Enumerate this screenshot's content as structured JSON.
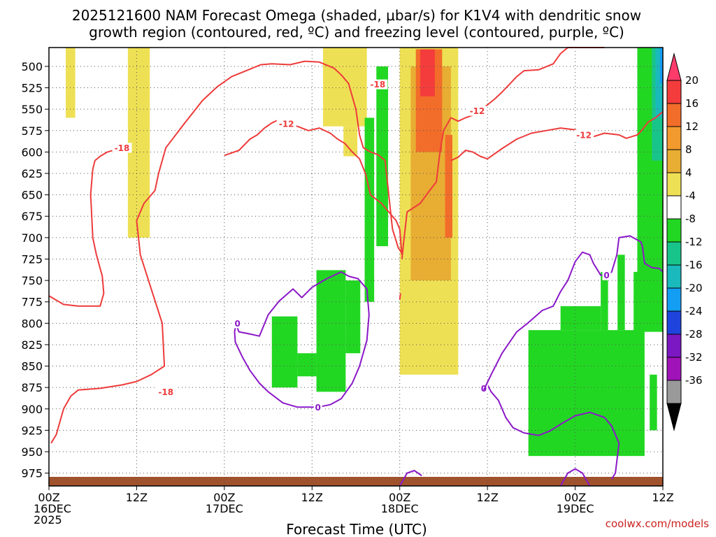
{
  "chart_data": {
    "type": "contour",
    "title_line1": "2025121600 NAM Forecast Omega (shaded, μbar/s) for K1V4 with dendritic snow",
    "title_line2": "growth region (contoured, red, ºC) and freezing level (contoured, purple, ºC)",
    "xlabel": "Forecast Time (UTC)",
    "credit": "coolwx.com/models",
    "x_ticks": [
      {
        "hour": 0,
        "l1": "00Z",
        "l2": "16DEC",
        "l3": "2025"
      },
      {
        "hour": 12,
        "l1": "12Z",
        "l2": "",
        "l3": ""
      },
      {
        "hour": 24,
        "l1": "00Z",
        "l2": "17DEC",
        "l3": ""
      },
      {
        "hour": 36,
        "l1": "12Z",
        "l2": "",
        "l3": ""
      },
      {
        "hour": 48,
        "l1": "00Z",
        "l2": "18DEC",
        "l3": ""
      },
      {
        "hour": 60,
        "l1": "12Z",
        "l2": "",
        "l3": ""
      },
      {
        "hour": 72,
        "l1": "00Z",
        "l2": "19DEC",
        "l3": ""
      },
      {
        "hour": 84,
        "l1": "12Z",
        "l2": "",
        "l3": ""
      }
    ],
    "xlim": [
      0,
      84
    ],
    "y_ticks": [
      500,
      525,
      550,
      575,
      600,
      625,
      650,
      675,
      700,
      725,
      750,
      775,
      800,
      825,
      850,
      875,
      900,
      925,
      950,
      975
    ],
    "ylim_hPa": [
      478,
      990
    ],
    "colorbar_labels": [
      "20",
      "16",
      "12",
      "8",
      "4",
      "-4",
      "-8",
      "-12",
      "-16",
      "-20",
      "-24",
      "-28",
      "-32",
      "-36"
    ],
    "colorbar_colors": [
      "#ff3b6b",
      "#f53c3c",
      "#f26d2a",
      "#f29a2e",
      "#e8ad33",
      "#eee054",
      "#ffffff",
      "#22d722",
      "#18c48a",
      "#1ab9bb",
      "#139df3",
      "#1f44dd",
      "#7b18c3",
      "#a013b8",
      "#9a9a9a",
      "#000000"
    ],
    "omega_cells": [
      {
        "t0": 2.3,
        "t1": 3.6,
        "p0": 478,
        "p1": 560,
        "cls": "lt4"
      },
      {
        "t0": 10.8,
        "t1": 13.8,
        "p0": 478,
        "p1": 700,
        "cls": "lt4"
      },
      {
        "t0": 37.5,
        "t1": 43.5,
        "p0": 478,
        "p1": 570,
        "cls": "lt4"
      },
      {
        "t0": 40.3,
        "t1": 42.2,
        "p0": 570,
        "p1": 605,
        "cls": "lt4"
      },
      {
        "t0": 48,
        "t1": 56,
        "p0": 478,
        "p1": 860,
        "cls": "lt4"
      },
      {
        "t0": 49.5,
        "t1": 55,
        "p0": 500,
        "p1": 750,
        "cls": "o8"
      },
      {
        "t0": 50.2,
        "t1": 53.8,
        "p0": 480,
        "p1": 600,
        "cls": "o12"
      },
      {
        "t0": 50.8,
        "t1": 52.8,
        "p0": 480,
        "p1": 535,
        "cls": "r16"
      },
      {
        "t0": 54.2,
        "t1": 55.2,
        "p0": 580,
        "p1": 700,
        "cls": "o12"
      },
      {
        "t0": 43.2,
        "t1": 44.5,
        "p0": 560,
        "p1": 775,
        "cls": "g8"
      },
      {
        "t0": 44.8,
        "t1": 46.4,
        "p0": 500,
        "p1": 710,
        "cls": "g8"
      },
      {
        "t0": 30.5,
        "t1": 34,
        "p0": 792,
        "p1": 875,
        "cls": "g8"
      },
      {
        "t0": 34,
        "t1": 36.6,
        "p0": 835,
        "p1": 862,
        "cls": "g8"
      },
      {
        "t0": 36.6,
        "t1": 40.6,
        "p0": 738,
        "p1": 880,
        "cls": "g8"
      },
      {
        "t0": 40.6,
        "t1": 42.6,
        "p0": 750,
        "p1": 835,
        "cls": "g8"
      },
      {
        "t0": 65.6,
        "t1": 81.5,
        "p0": 808,
        "p1": 955,
        "cls": "g8"
      },
      {
        "t0": 70,
        "t1": 75.5,
        "p0": 780,
        "p1": 808,
        "cls": "g8"
      },
      {
        "t0": 75.5,
        "t1": 76.5,
        "p0": 740,
        "p1": 808,
        "cls": "g8"
      },
      {
        "t0": 77.8,
        "t1": 78.8,
        "p0": 720,
        "p1": 808,
        "cls": "g8"
      },
      {
        "t0": 80,
        "t1": 81.2,
        "p0": 740,
        "p1": 935,
        "cls": "g8"
      },
      {
        "t0": 80.5,
        "t1": 84,
        "p0": 478,
        "p1": 810,
        "cls": "g8"
      },
      {
        "t0": 82.2,
        "t1": 83.2,
        "p0": 860,
        "p1": 925,
        "cls": "g8"
      },
      {
        "t0": 82.5,
        "t1": 84,
        "p0": 478,
        "p1": 610,
        "cls": "t12"
      },
      {
        "t0": 83,
        "t1": 84,
        "p0": 478,
        "p1": 560,
        "cls": "b16"
      },
      {
        "t0": 83.6,
        "t1": 84,
        "p0": 478,
        "p1": 520,
        "cls": "b20"
      }
    ],
    "dendritic_contours": [
      {
        "label": "-18",
        "pts": [
          [
            0.3,
            940
          ],
          [
            1,
            930
          ],
          [
            2,
            900
          ],
          [
            3,
            885
          ],
          [
            4,
            878
          ],
          [
            7,
            876
          ],
          [
            10,
            872
          ],
          [
            12,
            868
          ],
          [
            14,
            860
          ],
          [
            15.8,
            850
          ],
          [
            15.5,
            800
          ],
          [
            14,
            760
          ],
          [
            12.5,
            720
          ],
          [
            12,
            680
          ],
          [
            13,
            660
          ],
          [
            14.5,
            645
          ],
          [
            15,
            625
          ],
          [
            16,
            595
          ],
          [
            18.5,
            567
          ],
          [
            21,
            540
          ],
          [
            23,
            524
          ],
          [
            25,
            512
          ],
          [
            27,
            505
          ],
          [
            29,
            498
          ],
          [
            30.5,
            497
          ],
          [
            33,
            498
          ],
          [
            35,
            494
          ],
          [
            37,
            495
          ],
          [
            39,
            502
          ],
          [
            40,
            510
          ],
          [
            41,
            520
          ],
          [
            42,
            550
          ],
          [
            42.5,
            580
          ],
          [
            43,
            595
          ],
          [
            44,
            600
          ],
          [
            45,
            603
          ],
          [
            46,
            610
          ],
          [
            46.5,
            650
          ],
          [
            47,
            690
          ],
          [
            47.8,
            712
          ],
          [
            48.3,
            718
          ]
        ],
        "lx": [
          [
            16,
            880
          ],
          [
            45,
            521
          ]
        ]
      },
      {
        "label": "-18",
        "pts": [
          [
            0,
            768
          ],
          [
            2,
            778
          ],
          [
            4,
            780
          ],
          [
            7,
            780
          ],
          [
            7.5,
            765
          ],
          [
            7.3,
            745
          ],
          [
            6.5,
            720
          ],
          [
            6,
            700
          ],
          [
            5.8,
            665
          ],
          [
            5.7,
            650
          ],
          [
            6,
            620
          ],
          [
            6.3,
            610
          ],
          [
            7,
            605
          ],
          [
            8,
            600
          ],
          [
            10,
            595
          ]
        ],
        "lx": [
          [
            10,
            595
          ]
        ]
      },
      {
        "label": "-12",
        "pts": [
          [
            24,
            604
          ],
          [
            26,
            598
          ],
          [
            27.5,
            585
          ],
          [
            28.5,
            580
          ],
          [
            29.5,
            572
          ],
          [
            30.5,
            566
          ],
          [
            31.5,
            562
          ],
          [
            32.5,
            567
          ],
          [
            34,
            570
          ],
          [
            35.5,
            575
          ],
          [
            37,
            572
          ],
          [
            38.5,
            578
          ],
          [
            39.5,
            585
          ],
          [
            40.5,
            590
          ],
          [
            41.5,
            600
          ],
          [
            42.5,
            608
          ],
          [
            43.3,
            625
          ],
          [
            44,
            650
          ],
          [
            45.5,
            660
          ],
          [
            46.5,
            670
          ],
          [
            47.5,
            680
          ],
          [
            48,
            690
          ],
          [
            48.3,
            720
          ]
        ],
        "lx": [
          [
            32.5,
            567
          ]
        ]
      },
      {
        "label": "-12",
        "pts": [
          [
            48.3,
            725
          ],
          [
            48.6,
            700
          ],
          [
            49,
            670
          ],
          [
            50.8,
            660
          ],
          [
            52,
            646
          ],
          [
            53,
            635
          ],
          [
            53.5,
            600
          ],
          [
            54,
            575
          ],
          [
            55,
            560
          ],
          [
            56,
            564
          ],
          [
            57,
            560
          ],
          [
            58,
            557
          ],
          [
            59,
            552
          ],
          [
            60,
            545
          ],
          [
            61,
            538
          ],
          [
            62,
            530
          ],
          [
            63,
            521
          ],
          [
            64,
            512
          ],
          [
            65,
            505
          ],
          [
            67,
            504
          ],
          [
            69,
            497
          ],
          [
            70,
            485
          ],
          [
            71,
            478
          ],
          [
            73,
            478
          ],
          [
            75,
            478
          ],
          [
            76,
            478
          ]
        ],
        "lx": [
          [
            58.6,
            552
          ]
        ]
      },
      {
        "label": "-12",
        "pts": [
          [
            55,
            610
          ],
          [
            56,
            606
          ],
          [
            57,
            598
          ],
          [
            58,
            600
          ],
          [
            59,
            605
          ],
          [
            60,
            608
          ],
          [
            62,
            596
          ],
          [
            64,
            585
          ],
          [
            66,
            578
          ],
          [
            68,
            575
          ],
          [
            70,
            572
          ],
          [
            72,
            574
          ],
          [
            73,
            580
          ],
          [
            74.5,
            582
          ],
          [
            76,
            578
          ],
          [
            78,
            580
          ],
          [
            79,
            584
          ],
          [
            80.5,
            580
          ],
          [
            81,
            576
          ],
          [
            82,
            565
          ],
          [
            83,
            560
          ],
          [
            84,
            553
          ]
        ],
        "lx": [
          [
            73.2,
            580
          ]
        ]
      },
      {
        "label": "-12",
        "pts": [
          [
            48,
            772
          ],
          [
            48.1,
            765
          ]
        ],
        "lx": []
      }
    ],
    "freezing_contours": [
      {
        "label": "0",
        "pts": [
          [
            25.6,
            800
          ],
          [
            25.8,
            806
          ],
          [
            26,
            810
          ],
          [
            27.2,
            812
          ],
          [
            28.8,
            815
          ],
          [
            30,
            790
          ],
          [
            31.5,
            774
          ],
          [
            33.4,
            760
          ],
          [
            34.6,
            770
          ],
          [
            36,
            758
          ],
          [
            38,
            748
          ],
          [
            40,
            740
          ],
          [
            41,
            745
          ],
          [
            42.3,
            748
          ],
          [
            43.5,
            760
          ],
          [
            43.8,
            790
          ],
          [
            43.5,
            820
          ],
          [
            42.5,
            850
          ],
          [
            41.5,
            870
          ],
          [
            40,
            888
          ],
          [
            38.5,
            895
          ],
          [
            36.8,
            898
          ],
          [
            34,
            898
          ],
          [
            32,
            893
          ],
          [
            30,
            880
          ],
          [
            28.8,
            870
          ],
          [
            27.5,
            855
          ],
          [
            26.5,
            840
          ],
          [
            25.5,
            822
          ],
          [
            25.4,
            810
          ],
          [
            25.6,
            800
          ]
        ],
        "lx": [
          [
            25.8,
            800
          ],
          [
            36.8,
            898
          ]
        ]
      },
      {
        "label": "0",
        "pts": [
          [
            59,
            878
          ],
          [
            59.5,
            876
          ],
          [
            60,
            872
          ],
          [
            60.5,
            880
          ],
          [
            61.5,
            890
          ],
          [
            62.5,
            910
          ],
          [
            63.5,
            922
          ],
          [
            65,
            928
          ],
          [
            67,
            931
          ],
          [
            68.5,
            926
          ],
          [
            70,
            918
          ],
          [
            72,
            908
          ],
          [
            74,
            904
          ],
          [
            76,
            910
          ],
          [
            77,
            920
          ],
          [
            78,
            940
          ],
          [
            77.5,
            975
          ],
          [
            77,
            982
          ]
        ],
        "lx": [
          [
            59.5,
            876
          ]
        ]
      },
      {
        "label": "0",
        "pts": [
          [
            59.5,
            878
          ],
          [
            60.5,
            860
          ],
          [
            62,
            835
          ],
          [
            64,
            810
          ],
          [
            65.5,
            800
          ],
          [
            67.5,
            785
          ],
          [
            69,
            780
          ],
          [
            70,
            763
          ],
          [
            71,
            750
          ],
          [
            72,
            728
          ],
          [
            73,
            717
          ],
          [
            74,
            720
          ],
          [
            74.5,
            730
          ],
          [
            75.5,
            744
          ],
          [
            76.5,
            744
          ],
          [
            77,
            740
          ],
          [
            77.7,
            720
          ],
          [
            78,
            700
          ],
          [
            79.5,
            698
          ],
          [
            81,
            705
          ],
          [
            81.2,
            710
          ],
          [
            81.5,
            730
          ],
          [
            82.5,
            735
          ],
          [
            83.5,
            736
          ],
          [
            84,
            740
          ]
        ],
        "lx": [
          [
            76.3,
            744
          ]
        ]
      },
      {
        "label": "0",
        "pts": [
          [
            48,
            990
          ],
          [
            49,
            975
          ],
          [
            50,
            972
          ],
          [
            51,
            978
          ]
        ],
        "lx": []
      },
      {
        "label": "0",
        "pts": [
          [
            70,
            990
          ],
          [
            71,
            975
          ],
          [
            72,
            970
          ],
          [
            73,
            975
          ],
          [
            74,
            990
          ]
        ],
        "lx": []
      }
    ]
  }
}
